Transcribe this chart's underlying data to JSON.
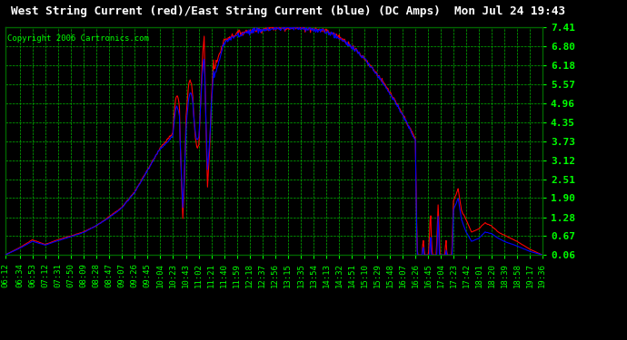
{
  "title": "West String Current (red)/East String Current (blue) (DC Amps)  Mon Jul 24 19:43",
  "copyright": "Copyright 2006 Cartronics.com",
  "background_color": "#000000",
  "plot_bg_color": "#000000",
  "grid_color": "#00CC00",
  "yticks": [
    0.06,
    0.67,
    1.28,
    1.9,
    2.51,
    3.12,
    3.73,
    4.35,
    4.96,
    5.57,
    6.18,
    6.8,
    7.41
  ],
  "ymin": 0.06,
  "ymax": 7.41,
  "red_line_color": "#FF0000",
  "blue_line_color": "#0000FF",
  "title_color": "#FFFFFF",
  "tick_color": "#00FF00",
  "xtick_labels": [
    "06:12",
    "06:34",
    "06:53",
    "07:12",
    "07:31",
    "07:50",
    "08:09",
    "08:28",
    "08:47",
    "09:07",
    "09:26",
    "09:45",
    "10:04",
    "10:23",
    "10:43",
    "11:02",
    "11:21",
    "11:40",
    "11:59",
    "12:18",
    "12:37",
    "12:56",
    "13:15",
    "13:35",
    "13:54",
    "14:13",
    "14:32",
    "14:51",
    "15:10",
    "15:29",
    "15:48",
    "16:07",
    "16:26",
    "16:45",
    "17:04",
    "17:23",
    "17:42",
    "18:01",
    "18:20",
    "18:39",
    "18:58",
    "19:17",
    "19:36"
  ]
}
